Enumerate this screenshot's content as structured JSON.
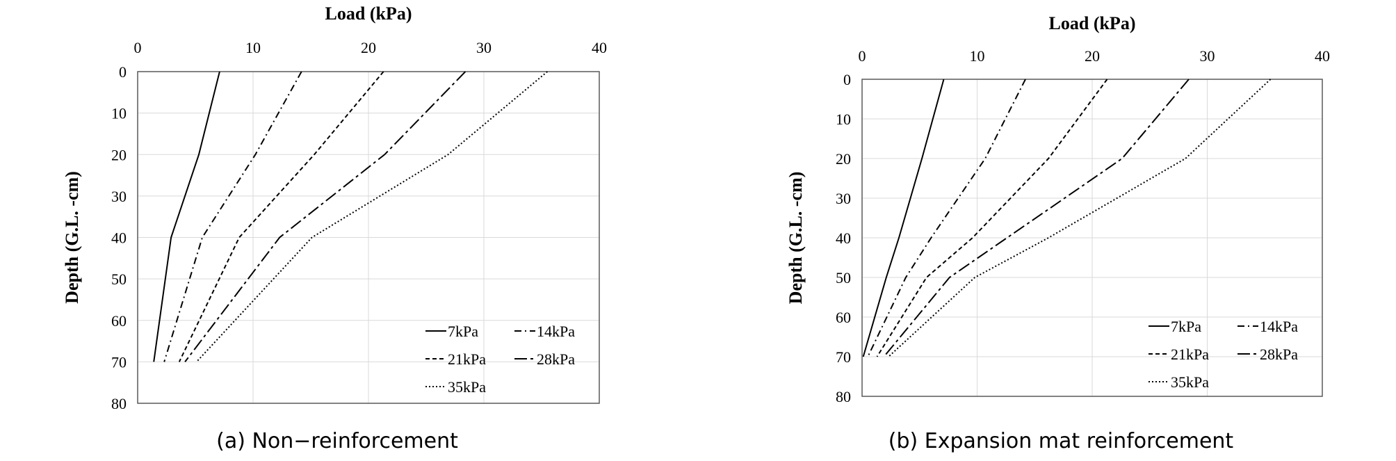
{
  "chart_data": [
    {
      "type": "line",
      "caption": "(a) Non−reinforcement",
      "xlabel": "Load (kPa)",
      "ylabel": "Depth (G.L. -cm)",
      "xlim": [
        0,
        40
      ],
      "ylim": [
        0,
        80
      ],
      "x_ticks": [
        "0",
        "10",
        "20",
        "30",
        "40"
      ],
      "y_ticks": [
        "0",
        "10",
        "20",
        "30",
        "40",
        "50",
        "60",
        "70",
        "80"
      ],
      "grid": true,
      "legend_position": "bottom-right",
      "series": [
        {
          "name": "7kPa",
          "style": "solid",
          "points": [
            [
              7.1,
              0
            ],
            [
              5.3,
              20
            ],
            [
              2.9,
              40
            ],
            [
              1.4,
              70
            ]
          ]
        },
        {
          "name": "14kPa",
          "style": "dashdot",
          "points": [
            [
              14.2,
              0
            ],
            [
              10.2,
              20
            ],
            [
              5.6,
              40
            ],
            [
              2.3,
              70
            ]
          ]
        },
        {
          "name": "21kPa",
          "style": "dashed",
          "points": [
            [
              21.3,
              0
            ],
            [
              15.3,
              20
            ],
            [
              8.8,
              40
            ],
            [
              3.6,
              70
            ]
          ]
        },
        {
          "name": "28kPa",
          "style": "longdash",
          "points": [
            [
              28.4,
              0
            ],
            [
              21.4,
              20
            ],
            [
              12.3,
              40
            ],
            [
              4.1,
              70
            ]
          ]
        },
        {
          "name": "35kPa",
          "style": "dotted",
          "points": [
            [
              35.5,
              0
            ],
            [
              26.9,
              20
            ],
            [
              15.1,
              40
            ],
            [
              5.1,
              70
            ]
          ]
        }
      ]
    },
    {
      "type": "line",
      "caption": "(b) Expansion mat reinforcement",
      "xlabel": "Load (kPa)",
      "ylabel": "Depth (G.L. -cm)",
      "xlim": [
        0,
        40
      ],
      "ylim": [
        0,
        80
      ],
      "x_ticks": [
        "0",
        "10",
        "20",
        "30",
        "40"
      ],
      "y_ticks": [
        "0",
        "10",
        "20",
        "30",
        "40",
        "50",
        "60",
        "70",
        "80"
      ],
      "grid": true,
      "legend_position": "bottom-right",
      "series": [
        {
          "name": "7kPa",
          "style": "solid",
          "points": [
            [
              7.1,
              0
            ],
            [
              5.2,
              20
            ],
            [
              3.2,
              40
            ],
            [
              2.1,
              50
            ],
            [
              0.1,
              70
            ]
          ]
        },
        {
          "name": "14kPa",
          "style": "dashdot",
          "points": [
            [
              14.2,
              0
            ],
            [
              10.7,
              20
            ],
            [
              6.0,
              40
            ],
            [
              3.8,
              50
            ],
            [
              0.5,
              70
            ]
          ]
        },
        {
          "name": "21kPa",
          "style": "dashed",
          "points": [
            [
              21.3,
              0
            ],
            [
              16.2,
              20
            ],
            [
              9.6,
              40
            ],
            [
              5.6,
              50
            ],
            [
              1.3,
              70
            ]
          ]
        },
        {
          "name": "28kPa",
          "style": "longdash",
          "points": [
            [
              28.4,
              0
            ],
            [
              22.6,
              20
            ],
            [
              12.6,
              40
            ],
            [
              7.6,
              50
            ],
            [
              1.9,
              70
            ]
          ]
        },
        {
          "name": "35kPa",
          "style": "dotted",
          "points": [
            [
              35.5,
              0
            ],
            [
              28.1,
              20
            ],
            [
              16.2,
              40
            ],
            [
              9.8,
              50
            ],
            [
              2.3,
              70
            ]
          ]
        }
      ]
    }
  ]
}
